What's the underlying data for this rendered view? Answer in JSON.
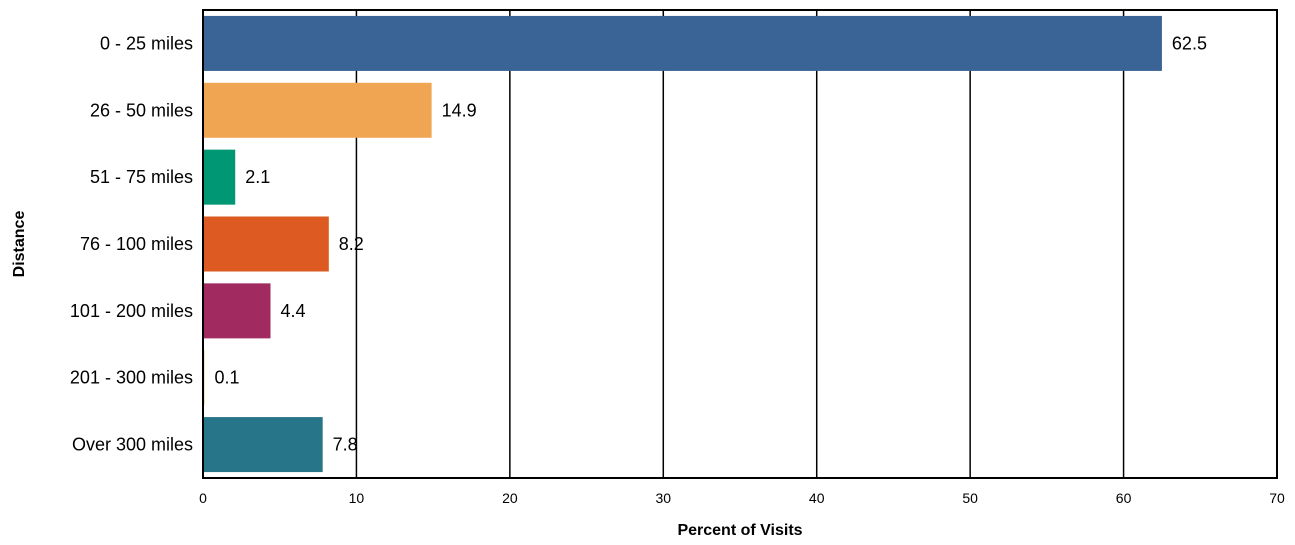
{
  "chart_data": {
    "type": "bar",
    "orientation": "horizontal",
    "title": "",
    "xlabel": "Percent of Visits",
    "ylabel": "Distance",
    "categories": [
      "0 - 25 miles",
      "26 - 50 miles",
      "51 - 75 miles",
      "76 - 100 miles",
      "101 - 200 miles",
      "201 - 300 miles",
      "Over 300 miles"
    ],
    "values": [
      62.5,
      14.9,
      2.1,
      8.2,
      4.4,
      0.1,
      7.8
    ],
    "value_labels": [
      "62.5",
      "14.9",
      "2.1",
      "8.2",
      "4.4",
      "0.1",
      "7.8"
    ],
    "colors": [
      "#3B6496",
      "#F0A553",
      "#009874",
      "#DD5A22",
      "#A12B60",
      "#F4C66B",
      "#277588"
    ],
    "xlim": [
      0,
      70
    ],
    "xticks": [
      0,
      10,
      20,
      30,
      40,
      50,
      60,
      70
    ],
    "xtick_labels": [
      "0",
      "10",
      "20",
      "30",
      "40",
      "50",
      "60",
      "70"
    ],
    "grid": "vertical",
    "legend": "none"
  }
}
